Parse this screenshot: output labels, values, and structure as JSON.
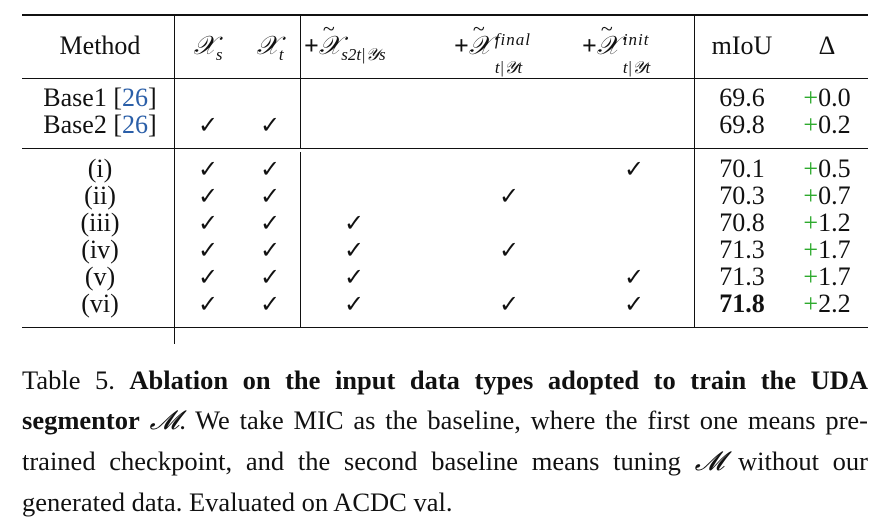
{
  "table": {
    "headers": {
      "method": "Method",
      "xs": "𝒳",
      "xs_sub": "s",
      "xt": "𝒳",
      "xt_sub": "t",
      "c3_plus": "+",
      "c3_sym": "𝒳",
      "c3_sub": "s2t|𝒴s",
      "c4_plus": "+",
      "c4_sym": "𝒳",
      "c4_sup": "final",
      "c4_sub": "t|𝒴t",
      "c5_plus": "+",
      "c5_sym": "𝒳",
      "c5_sup": "init",
      "c5_sub": "t|𝒴t",
      "miou": "mIoU",
      "delta": "Δ"
    },
    "rows": [
      {
        "method": "Base1 ",
        "cite": "26",
        "xs": "",
        "xt": "",
        "c3": "",
        "c4": "",
        "c5": "",
        "miou": "69.6",
        "delta_sign": "+",
        "delta_val": "0.0"
      },
      {
        "method": "Base2 ",
        "cite": "26",
        "xs": "✓",
        "xt": "✓",
        "c3": "",
        "c4": "",
        "c5": "",
        "miou": "69.8",
        "delta_sign": "+",
        "delta_val": "0.2"
      },
      {
        "method": "(i)",
        "xs": "✓",
        "xt": "✓",
        "c3": "",
        "c4": "",
        "c5": "✓",
        "miou": "70.1",
        "delta_sign": "+",
        "delta_val": "0.5"
      },
      {
        "method": "(ii)",
        "xs": "✓",
        "xt": "✓",
        "c3": "",
        "c4": "✓",
        "c5": "",
        "miou": "70.3",
        "delta_sign": "+",
        "delta_val": "0.7"
      },
      {
        "method": "(iii)",
        "xs": "✓",
        "xt": "✓",
        "c3": "✓",
        "c4": "",
        "c5": "",
        "miou": "70.8",
        "delta_sign": "+",
        "delta_val": "1.2"
      },
      {
        "method": "(iv)",
        "xs": "✓",
        "xt": "✓",
        "c3": "✓",
        "c4": "✓",
        "c5": "",
        "miou": "71.3",
        "delta_sign": "+",
        "delta_val": "1.7"
      },
      {
        "method": "(v)",
        "xs": "✓",
        "xt": "✓",
        "c3": "✓",
        "c4": "",
        "c5": "✓",
        "miou": "71.3",
        "delta_sign": "+",
        "delta_val": "1.7"
      },
      {
        "method": "(vi)",
        "xs": "✓",
        "xt": "✓",
        "c3": "✓",
        "c4": "✓",
        "c5": "✓",
        "miou": "71.8",
        "delta_sign": "+",
        "delta_val": "2.2",
        "bold": true
      }
    ]
  },
  "caption": {
    "label": "Table 5.",
    "title": "Ablation on the input data types adopted to train the UDA segmentor",
    "symbol": "𝓜",
    "text1": ". We take MIC as the baseline, where the first one means pre-trained checkpoint, and the second baseline means tuning",
    "text2": "without our generated data. Evaluated on ACDC val."
  },
  "colors": {
    "delta_plus": "#2eaa2e",
    "citation": "#2b5fa8"
  }
}
